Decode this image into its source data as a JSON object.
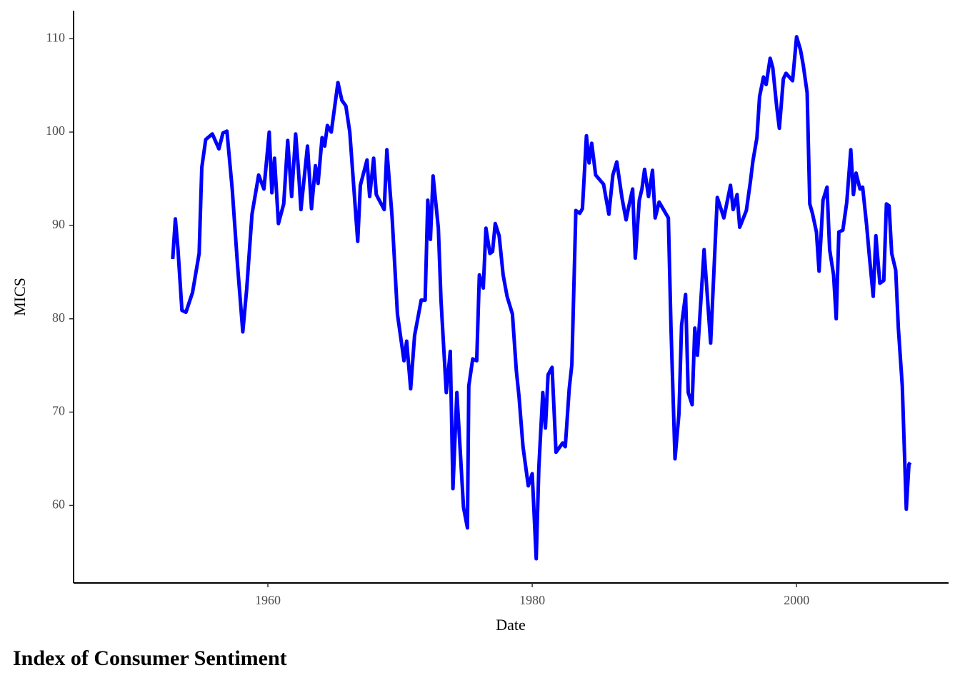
{
  "chart_data": {
    "type": "line",
    "title": "Index of Consumer Sentiment",
    "x_label": "Date",
    "y_label": "MICS",
    "color": "#0000ff",
    "grid": false,
    "xlim": [
      1945.3,
      2011.5
    ],
    "xticks": [
      1960,
      1980,
      2000
    ],
    "ylim": [
      51.7,
      113
    ],
    "yticks": [
      60,
      70,
      80,
      90,
      100,
      110
    ],
    "x": [
      1952.8,
      1953.0,
      1953.2,
      1953.5,
      1953.8,
      1954.3,
      1954.8,
      1955.0,
      1955.3,
      1955.8,
      1956.3,
      1956.6,
      1956.9,
      1957.3,
      1957.7,
      1958.1,
      1958.4,
      1958.8,
      1959.3,
      1959.7,
      1960.1,
      1960.3,
      1960.5,
      1960.8,
      1961.2,
      1961.5,
      1961.8,
      1962.1,
      1962.3,
      1962.5,
      1963.0,
      1963.3,
      1963.6,
      1963.8,
      1964.1,
      1964.3,
      1964.5,
      1964.8,
      1965.3,
      1965.6,
      1965.9,
      1966.2,
      1966.8,
      1967.0,
      1967.5,
      1967.7,
      1968.0,
      1968.2,
      1968.5,
      1968.8,
      1969.0,
      1969.4,
      1969.8,
      1970.3,
      1970.5,
      1970.8,
      1971.1,
      1971.6,
      1971.9,
      1972.1,
      1972.3,
      1972.5,
      1972.9,
      1973.1,
      1973.5,
      1973.8,
      1974.0,
      1974.3,
      1974.8,
      1975.1,
      1975.2,
      1975.5,
      1975.8,
      1976.0,
      1976.3,
      1976.5,
      1976.8,
      1977.0,
      1977.2,
      1977.5,
      1977.8,
      1978.1,
      1978.5,
      1978.8,
      1979.0,
      1979.3,
      1979.7,
      1980.0,
      1980.3,
      1980.5,
      1980.8,
      1981.0,
      1981.2,
      1981.5,
      1981.8,
      1982.3,
      1982.5,
      1982.8,
      1983.0,
      1983.3,
      1983.6,
      1983.8,
      1984.1,
      1984.3,
      1984.5,
      1984.8,
      1985.4,
      1985.8,
      1986.1,
      1986.4,
      1986.8,
      1987.1,
      1987.3,
      1987.6,
      1987.8,
      1988.1,
      1988.3,
      1988.5,
      1988.8,
      1989.1,
      1989.3,
      1989.6,
      1990.3,
      1990.5,
      1990.8,
      1991.1,
      1991.3,
      1991.6,
      1991.8,
      1992.1,
      1992.3,
      1992.5,
      1993.0,
      1993.5,
      1994.0,
      1994.5,
      1995.0,
      1995.2,
      1995.5,
      1995.7,
      1996.2,
      1996.5,
      1996.7,
      1997.0,
      1997.2,
      1997.5,
      1997.7,
      1998.0,
      1998.2,
      1998.5,
      1998.7,
      1999.0,
      1999.2,
      1999.7,
      2000.0,
      2000.3,
      2000.5,
      2000.8,
      2001.0,
      2001.2,
      2001.5,
      2001.7,
      2002.0,
      2002.3,
      2002.5,
      2002.8,
      2003.0,
      2003.2,
      2003.5,
      2003.8,
      2004.1,
      2004.3,
      2004.5,
      2004.8,
      2005.0,
      2005.3,
      2005.5,
      2005.8,
      2006.0,
      2006.3,
      2006.6,
      2006.8,
      2007.0,
      2007.2,
      2007.5,
      2007.7,
      2008.0,
      2008.3,
      2008.5,
      2008.6
    ],
    "values": [
      86.4,
      90.7,
      87.4,
      80.9,
      80.7,
      82.8,
      87.0,
      96.2,
      99.2,
      99.8,
      98.2,
      99.9,
      100.1,
      93.9,
      85.8,
      78.6,
      83.2,
      91.2,
      95.4,
      93.9,
      100.0,
      93.5,
      97.2,
      90.2,
      92.3,
      99.1,
      93.1,
      99.8,
      96.2,
      91.7,
      98.5,
      91.8,
      96.4,
      94.5,
      99.4,
      98.5,
      100.7,
      100.0,
      105.3,
      103.4,
      102.8,
      100.0,
      88.3,
      94.3,
      97.0,
      93.1,
      97.2,
      93.3,
      92.5,
      91.7,
      98.1,
      90.8,
      80.5,
      75.5,
      77.6,
      72.5,
      78.2,
      82.0,
      82.0,
      92.7,
      88.5,
      95.3,
      89.7,
      82.0,
      72.1,
      76.5,
      61.8,
      72.1,
      59.8,
      57.6,
      72.8,
      75.7,
      75.5,
      84.7,
      83.3,
      89.7,
      87.0,
      87.2,
      90.2,
      88.9,
      84.7,
      82.4,
      80.5,
      74.4,
      71.7,
      66.3,
      62.1,
      63.4,
      54.3,
      64.1,
      72.1,
      68.3,
      74.0,
      74.8,
      65.7,
      66.7,
      66.3,
      72.5,
      75.1,
      91.6,
      91.3,
      91.8,
      99.6,
      96.7,
      98.8,
      95.4,
      94.4,
      91.2,
      95.4,
      96.8,
      92.9,
      90.6,
      92.0,
      93.9,
      86.5,
      92.7,
      93.9,
      96.0,
      93.1,
      95.9,
      90.8,
      92.5,
      90.8,
      79.0,
      65.0,
      69.8,
      79.3,
      82.6,
      72.1,
      70.8,
      79.0,
      76.1,
      87.4,
      77.4,
      93.0,
      90.8,
      94.3,
      91.7,
      93.3,
      89.8,
      91.6,
      94.6,
      96.9,
      99.4,
      103.8,
      105.9,
      105.1,
      107.9,
      106.9,
      102.7,
      100.4,
      105.7,
      106.3,
      105.5,
      110.2,
      108.8,
      107.2,
      104.2,
      92.3,
      91.3,
      89.3,
      85.1,
      92.7,
      94.1,
      87.4,
      84.7,
      80.0,
      89.3,
      89.5,
      92.5,
      98.1,
      93.3,
      95.6,
      93.9,
      94.1,
      90.0,
      86.8,
      82.4,
      88.9,
      83.8,
      84.1,
      92.3,
      92.1,
      87.0,
      85.2,
      79.0,
      72.8,
      59.6,
      64.4,
      64.6
    ]
  }
}
